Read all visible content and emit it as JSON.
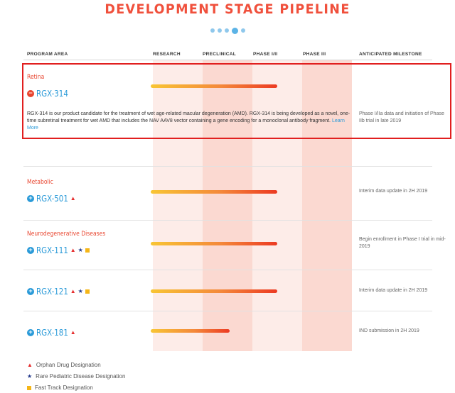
{
  "title": "DEVELOPMENT STAGE PIPELINE",
  "headers": {
    "program_area": "PROGRAM AREA",
    "research": "RESEARCH",
    "preclinical": "PRECLINICAL",
    "phase_1_2": "PHASE I/II",
    "phase_3": "PHASE III",
    "milestone": "ANTICIPATED MILESTONE"
  },
  "programs": [
    {
      "area": "Retina",
      "name": "RGX-314",
      "expanded": true,
      "progress": 0.8,
      "description": "RGX-314 is our product candidate for the treatment of wet age-related macular degeneration (AMD). RGX-314 is being developed as a novel, one-time subretinal treatment for wet AMD that includes the NAV AAV8 vector containing a gene encoding for a monoclonal antibody fragment.",
      "learn_more": "Learn More",
      "milestone": "Phase I/IIa data and initiation of Phase IIb trial in late 2019"
    },
    {
      "area": "Metabolic",
      "name": "RGX-501",
      "expanded": false,
      "progress": 0.8,
      "milestone": "Interim data update in 2H 2019"
    },
    {
      "area": "Neurodegenerative Diseases",
      "name": "RGX-111",
      "expanded": false,
      "progress": 0.8,
      "milestone": "Begin enrollment in Phase I trial in mid-2019"
    },
    {
      "area": "",
      "name": "RGX-121",
      "expanded": false,
      "progress": 0.8,
      "milestone": "Interim data update in 2H 2019"
    },
    {
      "area": "",
      "name": "RGX-181",
      "expanded": false,
      "progress": 0.5,
      "milestone": "IND submission in 2H 2019"
    }
  ],
  "legend": {
    "orphan": "Orphan Drug Designation",
    "rare_pediatric": "Rare Pediatric Disease Designation",
    "fast_track": "Fast Track Designation"
  },
  "colors": {
    "accent_red": "#e8452f",
    "link_blue": "#2a9ad8",
    "highlight_border": "#e11f1f"
  }
}
